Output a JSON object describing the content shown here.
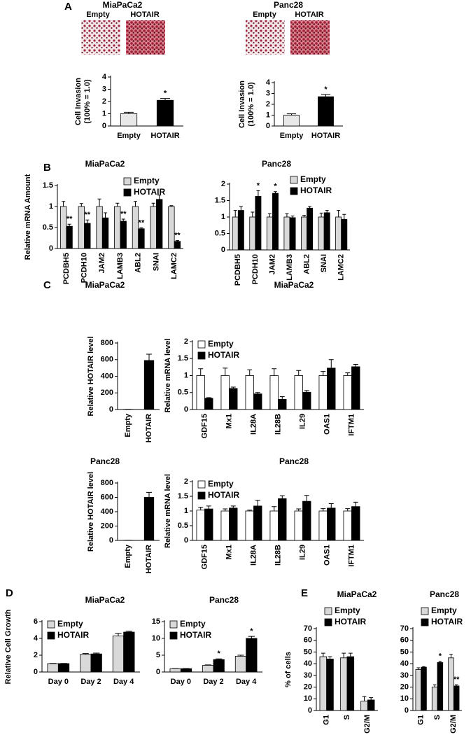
{
  "chart_data": [
    {
      "type": "bar",
      "panel_label": "A",
      "title": "MiaPaCa2",
      "image_labels": [
        "Empty",
        "HOTAIR"
      ],
      "ylabel": [
        "Cell Invasion",
        "(100% = 1.0)"
      ],
      "categories": [
        "Empty",
        "HOTAIR"
      ],
      "values": [
        1.0,
        2.1
      ],
      "errors": [
        0.12,
        0.15
      ],
      "colors": [
        "#e8e8e8",
        "#000000"
      ],
      "significance": [
        null,
        "*"
      ],
      "ylim": [
        0,
        4
      ],
      "yticks": [
        0,
        1,
        2,
        3,
        4
      ]
    },
    {
      "type": "bar",
      "title": "Panc28",
      "image_labels": [
        "Empty",
        "HOTAIR"
      ],
      "ylabel": [
        "Cell Invasion",
        "(100% = 1.0)"
      ],
      "categories": [
        "Empty",
        "HOTAIR"
      ],
      "values": [
        1.0,
        2.7
      ],
      "errors": [
        0.12,
        0.2
      ],
      "colors": [
        "#e8e8e8",
        "#000000"
      ],
      "significance": [
        null,
        "*"
      ],
      "ylim": [
        0,
        4
      ],
      "yticks": [
        0,
        1,
        2,
        3,
        4
      ]
    },
    {
      "type": "bar",
      "panel_label": "B",
      "title": "MiaPaCa2",
      "ylabel": [
        "Relative mRNA Amount"
      ],
      "categories": [
        "PCDBH5",
        "PCDH10",
        "JAM2",
        "LAMB3",
        "ABL2",
        "SNAI",
        "LAMC2"
      ],
      "legend": "upper right",
      "series": [
        {
          "name": "Empty",
          "color": "#d9d9d9",
          "values": [
            1,
            1,
            1,
            1,
            1,
            1,
            1
          ],
          "errors": [
            0.12,
            0.07,
            0.18,
            0.08,
            0.12,
            0.08,
            0.02
          ]
        },
        {
          "name": "HOTAIR",
          "color": "#000000",
          "values": [
            0.53,
            0.6,
            0.73,
            0.65,
            0.47,
            1.17,
            0.17
          ],
          "errors": [
            0.05,
            0.08,
            0.12,
            0.05,
            0.02,
            0.1,
            0.02
          ],
          "significance": [
            "**",
            "**",
            null,
            "**",
            "**",
            null,
            "**"
          ]
        }
      ],
      "ylim": [
        0,
        1.5
      ],
      "yticks": [
        0,
        0.5,
        1,
        1.5
      ]
    },
    {
      "type": "bar",
      "title": "Panc28",
      "categories": [
        "PCDBH5",
        "PCDH10",
        "JAM2",
        "LAMB3",
        "ABL2",
        "SNAI",
        "LAMC2"
      ],
      "legend": "upper right",
      "series": [
        {
          "name": "Empty",
          "color": "#d9d9d9",
          "values": [
            1,
            1,
            1,
            1,
            1,
            1,
            1
          ],
          "errors": [
            0.2,
            0.15,
            0.1,
            0.1,
            0.05,
            0.12,
            0.2
          ]
        },
        {
          "name": "HOTAIR",
          "color": "#000000",
          "values": [
            1.2,
            1.63,
            1.72,
            0.98,
            1.27,
            1.13,
            0.93
          ],
          "errors": [
            0.12,
            0.17,
            0.05,
            0.05,
            0.05,
            0.07,
            0.15
          ],
          "significance": [
            null,
            "*",
            "*",
            null,
            null,
            null,
            null
          ]
        }
      ],
      "ylim": [
        0,
        2
      ],
      "yticks": [
        0,
        0.5,
        1,
        1.5,
        2
      ]
    },
    {
      "type": "bar",
      "panel_label": "C",
      "title": "MiaPaCa2",
      "ylabel": [
        "Relative  HOTAIR level"
      ],
      "categories": [
        "Empty",
        "HOTAIR"
      ],
      "values": [
        2,
        590
      ],
      "errors": [
        0,
        75
      ],
      "colors": [
        "#000000",
        "#000000"
      ],
      "ylim": [
        0,
        800
      ],
      "yticks": [
        0,
        200,
        400,
        600,
        800
      ]
    },
    {
      "type": "bar",
      "title": "MiaPaCa2",
      "ylabel": [
        "Relative  mRNA level"
      ],
      "categories": [
        "GDF15",
        "Mx1",
        "IL28A",
        "IL28B",
        "IL29",
        "OAS1",
        "IFTM1"
      ],
      "legend": "upper left",
      "series": [
        {
          "name": "Empty",
          "color": "#ffffff",
          "values": [
            1,
            1,
            1,
            1,
            1,
            1,
            1
          ],
          "errors": [
            0.2,
            0.22,
            0.17,
            0.2,
            0.15,
            0.12,
            0.08
          ]
        },
        {
          "name": "HOTAIR",
          "color": "#000000",
          "values": [
            0.33,
            0.62,
            0.46,
            0.3,
            0.51,
            1.22,
            1.26
          ],
          "errors": [
            0.02,
            0.04,
            0.04,
            0.08,
            0.05,
            0.25,
            0.07
          ]
        }
      ],
      "ylim": [
        0,
        2
      ],
      "yticks": [
        0,
        0.5,
        1,
        1.5,
        2
      ]
    },
    {
      "type": "bar",
      "title": "Panc28",
      "ylabel": [
        "Relative  HOTAIR level"
      ],
      "categories": [
        "Empty",
        "HOTAIR"
      ],
      "values": [
        2,
        600
      ],
      "errors": [
        0,
        70
      ],
      "colors": [
        "#000000",
        "#000000"
      ],
      "ylim": [
        0,
        800
      ],
      "yticks": [
        0,
        200,
        400,
        600,
        800
      ]
    },
    {
      "type": "bar",
      "title": "Panc28",
      "ylabel": [
        "Relative  mRNA level"
      ],
      "categories": [
        "GDF15",
        "Mx1",
        "IL28A",
        "IL28B",
        "IL29",
        "OAS1",
        "IFTM1"
      ],
      "legend": "upper left",
      "series": [
        {
          "name": "Empty",
          "color": "#ffffff",
          "values": [
            1.03,
            1,
            1,
            1,
            1,
            1,
            1
          ],
          "errors": [
            0.1,
            0.07,
            0.03,
            0.15,
            0.07,
            0.08,
            0.08
          ]
        },
        {
          "name": "HOTAIR",
          "color": "#000000",
          "values": [
            1.07,
            1.1,
            1.17,
            1.42,
            1.33,
            1.1,
            1.15
          ],
          "errors": [
            0.1,
            0.07,
            0.2,
            0.1,
            0.2,
            0.15,
            0.15
          ]
        }
      ],
      "ylim": [
        0,
        2
      ],
      "yticks": [
        0,
        0.5,
        1,
        1.5,
        2
      ]
    },
    {
      "type": "bar",
      "panel_label": "D",
      "title": "MiaPaCa2",
      "ylabel": [
        "Relative Cell  Growth"
      ],
      "categories": [
        "Day 0",
        "Day 2",
        "Day 4"
      ],
      "legend": "upper left",
      "series": [
        {
          "name": "Empty",
          "color": "#d9d9d9",
          "values": [
            1,
            2.1,
            4.3
          ],
          "errors": [
            0.02,
            0.1,
            0.3
          ]
        },
        {
          "name": "HOTAIR",
          "color": "#000000",
          "values": [
            1,
            2.15,
            4.75
          ],
          "errors": [
            0.02,
            0.1,
            0.1
          ]
        }
      ],
      "ylim": [
        0,
        6
      ],
      "yticks": [
        0,
        2,
        4,
        6
      ]
    },
    {
      "type": "bar",
      "title": "Panc28",
      "categories": [
        "Day 0",
        "Day 2",
        "Day 4"
      ],
      "legend": "upper left",
      "series": [
        {
          "name": "Empty",
          "color": "#d9d9d9",
          "values": [
            1,
            2,
            4.7
          ],
          "errors": [
            0.05,
            0.1,
            0.3
          ]
        },
        {
          "name": "HOTAIR",
          "color": "#000000",
          "values": [
            1,
            3.7,
            10
          ],
          "errors": [
            0.05,
            0.2,
            0.6
          ],
          "significance": [
            null,
            "*",
            "*"
          ]
        }
      ],
      "ylim": [
        0,
        15
      ],
      "yticks": [
        0,
        5,
        10,
        15
      ]
    },
    {
      "type": "bar",
      "panel_label": "E",
      "title": "MiaPaCa2",
      "ylabel": [
        "% of cells"
      ],
      "categories": [
        "G1",
        "S",
        "G2/M"
      ],
      "legend": "top",
      "series": [
        {
          "name": "Empty",
          "color": "#d9d9d9",
          "values": [
            46,
            45,
            8
          ],
          "errors": [
            3,
            4,
            4
          ]
        },
        {
          "name": "HOTAIR",
          "color": "#000000",
          "values": [
            44,
            46,
            9
          ],
          "errors": [
            2,
            3,
            2
          ]
        }
      ],
      "ylim": [
        0,
        70
      ],
      "yticks": [
        0,
        10,
        20,
        30,
        40,
        50,
        60,
        70
      ]
    },
    {
      "type": "bar",
      "title": "Panc28",
      "categories": [
        "G1",
        "S",
        "G2/M"
      ],
      "legend": "top",
      "series": [
        {
          "name": "Empty",
          "color": "#d9d9d9",
          "values": [
            35,
            20,
            45
          ],
          "errors": [
            1.5,
            2,
            3
          ]
        },
        {
          "name": "HOTAIR",
          "color": "#000000",
          "values": [
            37,
            41,
            21
          ],
          "errors": [
            0.5,
            1,
            1
          ],
          "significance": [
            null,
            "*",
            "**"
          ]
        }
      ],
      "ylim": [
        0,
        70
      ],
      "yticks": [
        0,
        10,
        20,
        30,
        40,
        50,
        60,
        70
      ]
    }
  ]
}
